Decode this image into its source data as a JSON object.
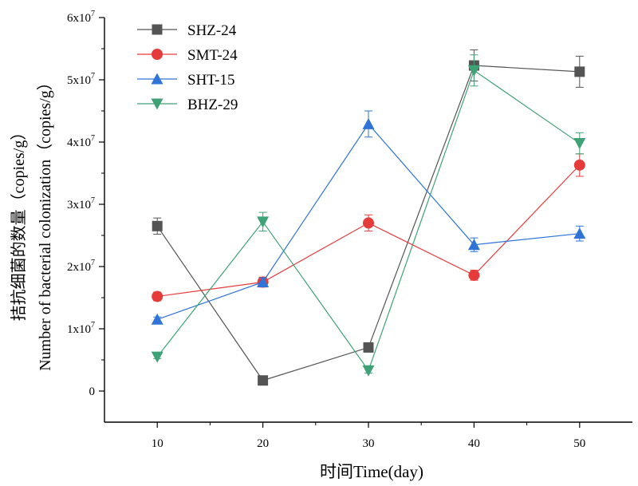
{
  "chart_data": {
    "type": "line",
    "title": "",
    "xlabel": "时间Time(day)",
    "ylabel_line1": "Number of bacterial colonization（copies/g）",
    "ylabel_line2": "拮抗细菌的数量（copies/g）",
    "x": [
      10,
      20,
      30,
      40,
      50
    ],
    "xlim": [
      5,
      55
    ],
    "ylim": [
      -5000000,
      60000000
    ],
    "xticks": [
      "10",
      "20",
      "30",
      "40",
      "50"
    ],
    "yticks": [
      {
        "value": 0,
        "label": "0",
        "exp": ""
      },
      {
        "value": 10000000,
        "label": "1x10",
        "exp": "7"
      },
      {
        "value": 20000000,
        "label": "2x10",
        "exp": "7"
      },
      {
        "value": 30000000,
        "label": "3x10",
        "exp": "7"
      },
      {
        "value": 40000000,
        "label": "4x10",
        "exp": "7"
      },
      {
        "value": 50000000,
        "label": "5x10",
        "exp": "7"
      },
      {
        "value": 60000000,
        "label": "6x10",
        "exp": "7"
      }
    ],
    "legend_position": "top-left",
    "grid": false,
    "series": [
      {
        "name": "SHZ-24",
        "color": "#545454",
        "marker": "square",
        "values": [
          26500000,
          1700000,
          7000000,
          52300000,
          51300000
        ],
        "errors": [
          1300000,
          300000,
          400000,
          2500000,
          2500000
        ]
      },
      {
        "name": "SMT-24",
        "color": "#e63b3b",
        "marker": "circle",
        "values": [
          15200000,
          17500000,
          27000000,
          18600000,
          36300000
        ],
        "errors": [
          700000,
          800000,
          1300000,
          800000,
          1800000
        ]
      },
      {
        "name": "SHT-15",
        "color": "#2f74d6",
        "marker": "triangle-up",
        "values": [
          11500000,
          17500000,
          42900000,
          23500000,
          25300000
        ],
        "errors": [
          400000,
          700000,
          2100000,
          1100000,
          1200000
        ]
      },
      {
        "name": "BHZ-29",
        "color": "#3fa276",
        "marker": "triangle-down",
        "values": [
          5500000,
          27200000,
          3300000,
          51500000,
          39800000
        ],
        "errors": [
          300000,
          1500000,
          400000,
          2500000,
          1700000
        ]
      }
    ]
  }
}
